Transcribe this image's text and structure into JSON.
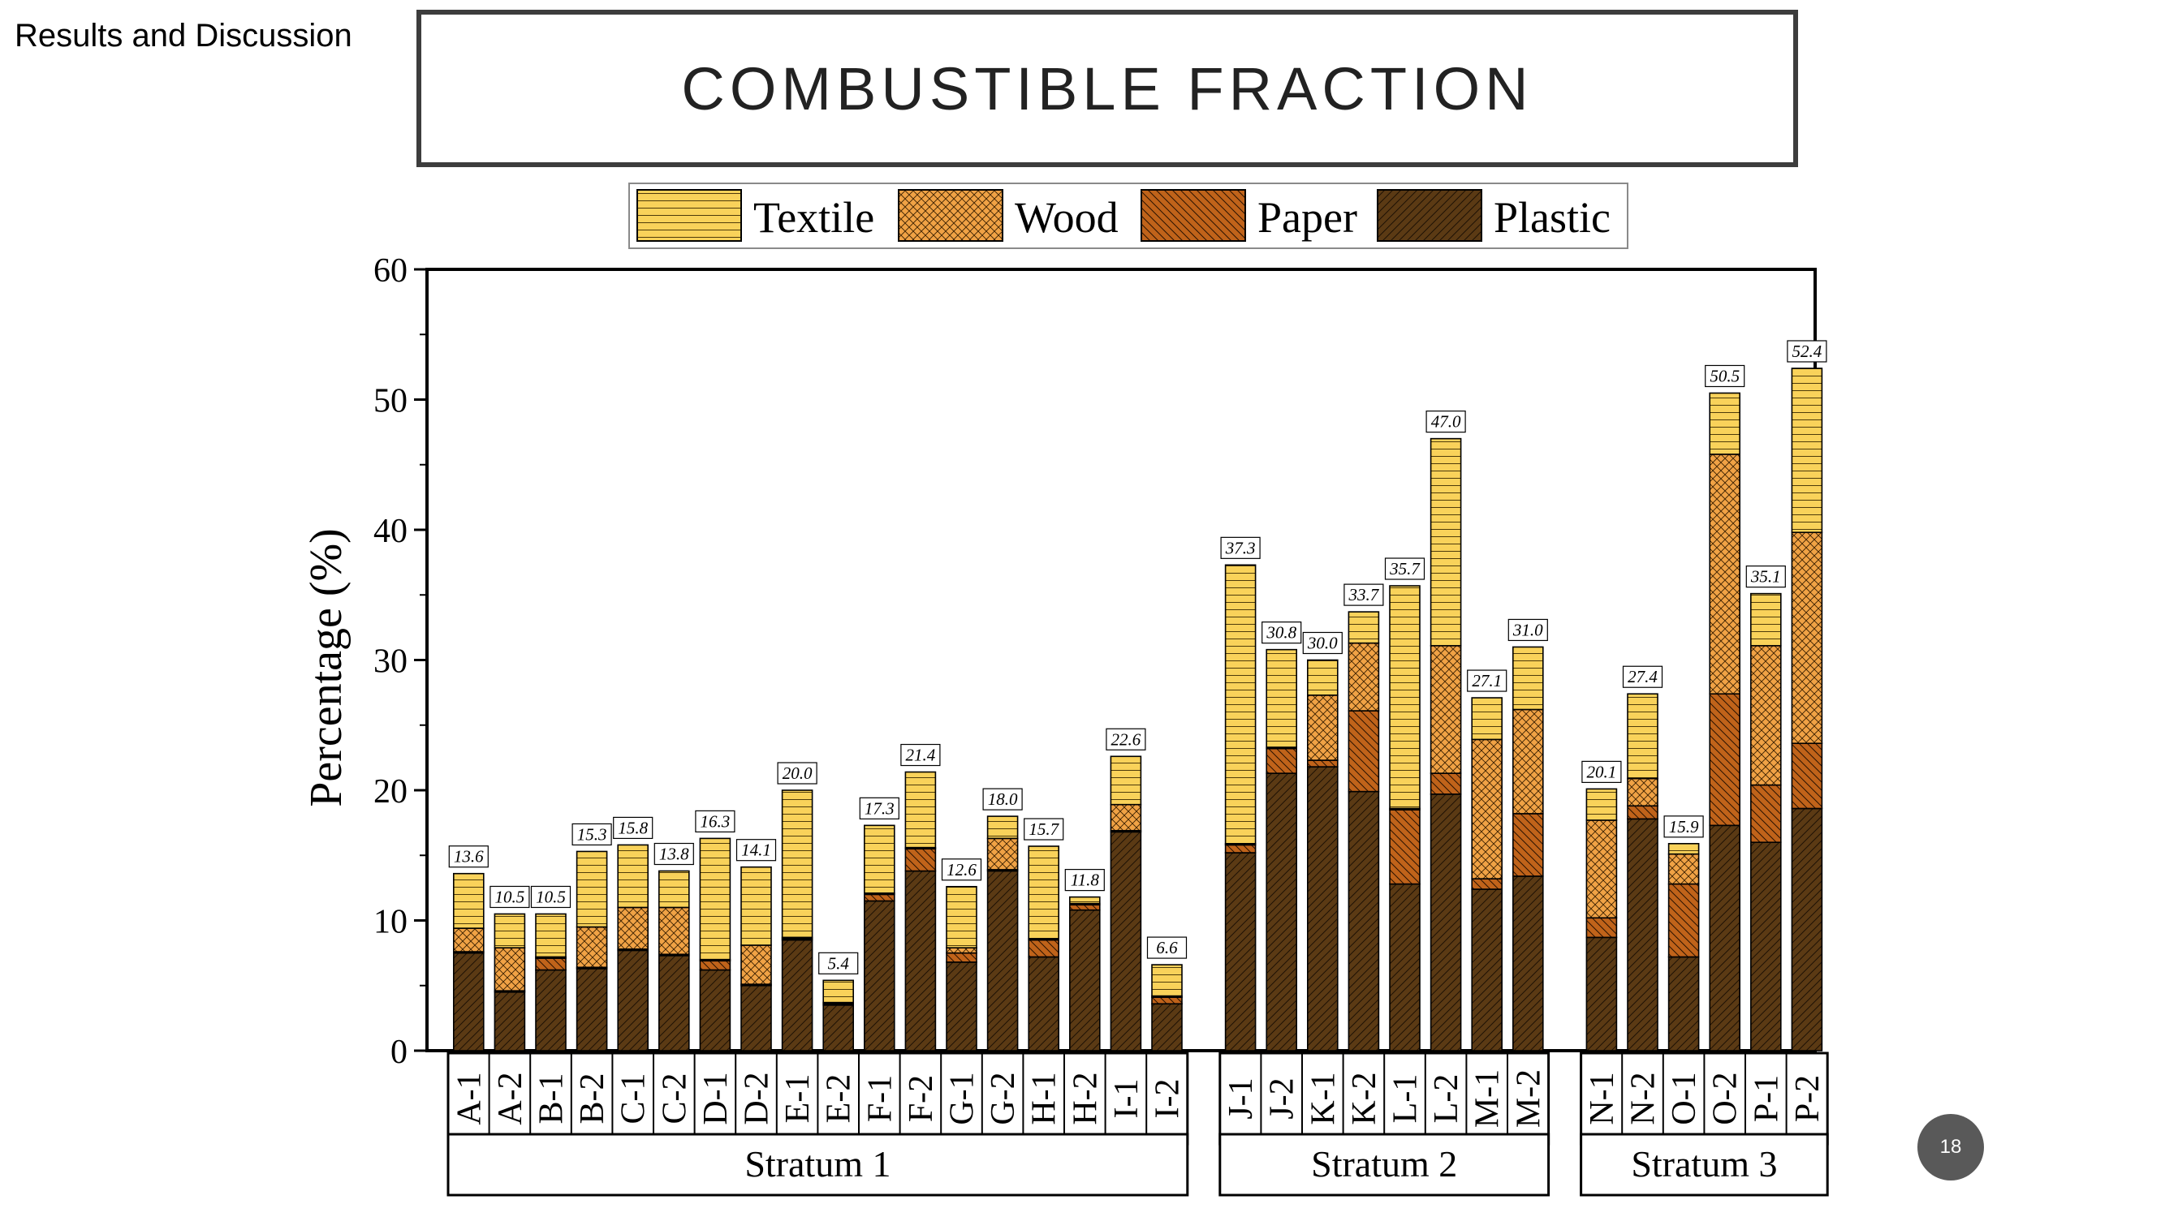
{
  "header": {
    "section": "Results and Discussion",
    "title": "COMBUSTIBLE FRACTION"
  },
  "page_number": "18",
  "colors": {
    "textile": "#f9d25a",
    "wood": "#f0a245",
    "paper": "#c0631a",
    "plastic": "#5b3a14"
  },
  "chart_data": {
    "type": "bar",
    "stacked": true,
    "ylabel": "Percentage (%)",
    "xlabel": "",
    "ylim": [
      0,
      60
    ],
    "yticks": [
      0,
      10,
      20,
      30,
      40,
      50,
      60
    ],
    "legend_position": "top-center",
    "legend": [
      "Textile",
      "Wood",
      "Paper",
      "Plastic"
    ],
    "categories": [
      "A-1",
      "A-2",
      "B-1",
      "B-2",
      "C-1",
      "C-2",
      "D-1",
      "D-2",
      "E-1",
      "E-2",
      "F-1",
      "F-2",
      "G-1",
      "G-2",
      "H-1",
      "H-2",
      "I-1",
      "I-2",
      "J-1",
      "J-2",
      "K-1",
      "K-2",
      "L-1",
      "L-2",
      "M-1",
      "M-2",
      "N-1",
      "N-2",
      "O-1",
      "O-2",
      "P-1",
      "P-2"
    ],
    "groups": [
      {
        "name": "Stratum 1",
        "count": 18
      },
      {
        "name": "Stratum 2",
        "count": 8
      },
      {
        "name": "Stratum 3",
        "count": 6
      }
    ],
    "series": [
      {
        "name": "Plastic",
        "values": [
          7.5,
          4.5,
          6.2,
          6.3,
          7.7,
          7.3,
          6.2,
          5.0,
          8.5,
          3.5,
          11.5,
          13.8,
          6.8,
          13.8,
          7.2,
          10.8,
          16.8,
          3.6,
          15.2,
          21.3,
          21.8,
          19.9,
          12.8,
          19.7,
          12.4,
          13.4,
          8.7,
          17.8,
          7.2,
          17.3,
          16.0,
          18.6
        ]
      },
      {
        "name": "Paper",
        "values": [
          0.1,
          0.1,
          0.9,
          0.1,
          0.1,
          0.1,
          0.7,
          0.1,
          0.1,
          0.1,
          0.5,
          1.7,
          0.7,
          0.1,
          1.3,
          0.4,
          0.1,
          0.5,
          0.6,
          1.9,
          0.5,
          6.2,
          5.7,
          1.6,
          0.8,
          4.8,
          1.5,
          1.0,
          5.6,
          10.1,
          4.4,
          5.0
        ]
      },
      {
        "name": "Wood",
        "values": [
          1.8,
          3.3,
          0.1,
          3.1,
          3.2,
          3.6,
          0.1,
          3.0,
          0.1,
          0.1,
          0.1,
          0.1,
          0.4,
          2.4,
          0.1,
          0.1,
          2.0,
          0.1,
          0.1,
          0.1,
          5.0,
          5.2,
          0.1,
          9.8,
          10.7,
          8.0,
          7.5,
          2.1,
          2.3,
          18.4,
          10.7,
          16.2
        ]
      },
      {
        "name": "Textile",
        "values": [
          4.2,
          2.6,
          3.3,
          5.8,
          4.8,
          2.8,
          9.3,
          6.0,
          11.3,
          1.7,
          5.2,
          5.8,
          4.7,
          1.7,
          7.1,
          0.5,
          3.7,
          2.4,
          21.4,
          7.5,
          2.7,
          2.4,
          17.1,
          15.9,
          3.2,
          4.8,
          2.4,
          6.5,
          0.8,
          4.7,
          4.0,
          12.6
        ]
      }
    ],
    "totals": [
      "13.6",
      "10.5",
      "10.5",
      "15.3",
      "15.8",
      "13.8",
      "16.3",
      "14.1",
      "20.0",
      "5.4",
      "17.3",
      "21.4",
      "12.6",
      "18.0",
      "15.7",
      "11.8",
      "22.6",
      "6.6",
      "37.3",
      "30.8",
      "30.0",
      "33.7",
      "35.7",
      "47.0",
      "27.1",
      "31.0",
      "20.1",
      "27.4",
      "15.9",
      "50.5",
      "35.1",
      "52.4"
    ]
  }
}
